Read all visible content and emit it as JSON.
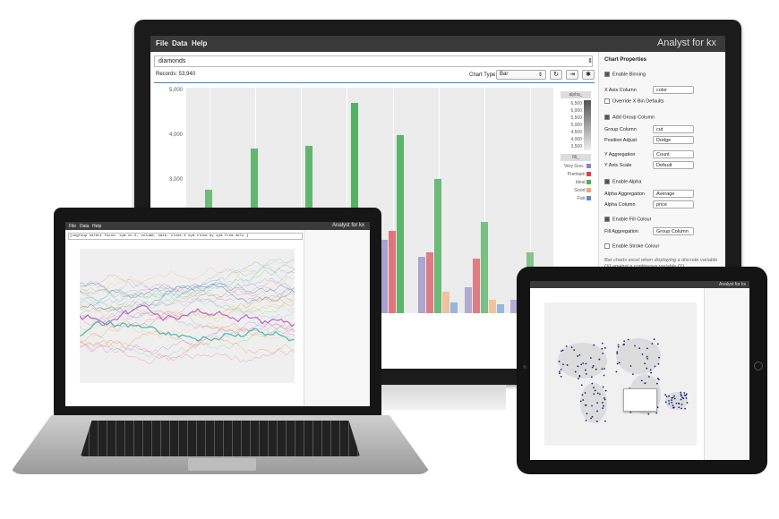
{
  "monitor": {
    "menu": [
      "File",
      "Data",
      "Help"
    ],
    "brand": "Analyst for kx",
    "query": "diamonds",
    "records": "Records: 53,940",
    "chart_type_label": "Chart Type",
    "chart_type_value": "Bar",
    "y_ticks": [
      "5,000",
      "4,000",
      "3,000"
    ],
    "legend": {
      "alpha_title": "alpha_",
      "alpha_values": [
        "6,500",
        "6,000",
        "5,500",
        "5,000",
        "4,500",
        "4,000",
        "3,500"
      ],
      "fill_title": "fill_",
      "fill_items": [
        "Very Goo..",
        "Premium",
        "Ideal",
        "Good",
        "Fair"
      ]
    },
    "props": {
      "title": "Chart Properties",
      "enable_binning": "Enable Binning",
      "x_axis_column_label": "X Axis Column",
      "x_axis_column_value": "color",
      "override_x_bin": "Override X Bin Defaults",
      "add_group_column": "Add Group Column",
      "group_column_label": "Group Column",
      "group_column_value": "cut",
      "position_adjust_label": "Position Adjust",
      "position_adjust_value": "Dodge",
      "y_aggregation_label": "Y Aggregation",
      "y_aggregation_value": "Count",
      "y_axis_scale_label": "Y Axis Scale",
      "y_axis_scale_value": "Default",
      "enable_alpha": "Enable Alpha",
      "alpha_aggregation_label": "Alpha Aggregation",
      "alpha_aggregation_value": "Average",
      "alpha_column_label": "Alpha Column",
      "alpha_column_value": "price",
      "enable_fill": "Enable Fill Colour",
      "fill_aggregation_label": "Fill Aggregation",
      "fill_aggregation_value": "Group Column",
      "enable_stroke": "Enable Stroke Colour",
      "note": "Bar charts excel when displaying a discrete variable (X) against a continuous variable (Y)."
    }
  },
  "laptop": {
    "menu": [
      "File",
      "Data",
      "Help"
    ],
    "brand": "Analyst for kx",
    "query": "[ungroup select focus: sym in X, volume, date, close # sym close by sym from dels ]"
  },
  "tablet": {
    "brand": "Analyst for kx"
  },
  "chart_data": {
    "type": "bar",
    "title": "",
    "ylabel": "",
    "ylim": [
      0,
      5200
    ],
    "series": [
      {
        "name": "Very Goo..",
        "color": "#8c7fc0"
      },
      {
        "name": "Premium",
        "color": "#d8434f"
      },
      {
        "name": "Ideal",
        "color": "#4eae5e"
      },
      {
        "name": "Good",
        "color": "#f2a56a"
      },
      {
        "name": "Fair",
        "color": "#5b8dc8"
      }
    ],
    "groups": [
      {
        "values": [
          null,
          null,
          2850,
          null,
          null
        ]
      },
      {
        "values": [
          null,
          null,
          3800,
          null,
          null
        ]
      },
      {
        "values": [
          2300,
          2250,
          3850,
          null,
          null
        ]
      },
      {
        "values": [
          2100,
          2300,
          4850,
          null,
          null
        ]
      },
      {
        "values": [
          1700,
          1900,
          4100,
          null,
          null
        ]
      },
      {
        "values": [
          1300,
          1400,
          3100,
          500,
          250
        ]
      },
      {
        "values": [
          600,
          1250,
          2100,
          300,
          200
        ]
      },
      {
        "values": [
          300,
          900,
          1400,
          200,
          100
        ]
      }
    ]
  }
}
